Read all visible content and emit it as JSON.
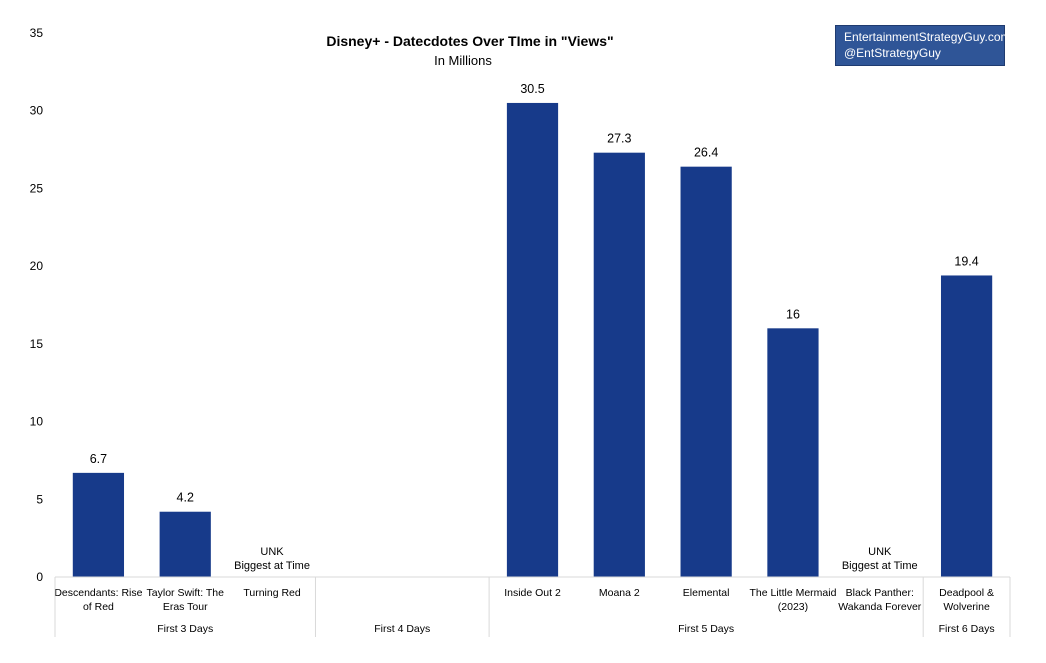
{
  "chart_data": {
    "type": "bar",
    "title": "Disney+ - Datecdotes Over TIme in \"Views\"",
    "subtitle": "In Millions",
    "ylim": [
      0,
      35
    ],
    "yticks": [
      0,
      5,
      10,
      15,
      20,
      25,
      30,
      35
    ],
    "bar_color": "#173a8a",
    "groups": [
      {
        "label": "First 3 Days",
        "slots": 3,
        "items": [
          {
            "slot": 0,
            "name": "Descendants: Rise of Red",
            "lines": [
              "Descendants: Rise",
              "of Red"
            ],
            "value": 6.7,
            "label": "6.7"
          },
          {
            "slot": 1,
            "name": "Taylor Swift: The Eras Tour",
            "lines": [
              "Taylor Swift: The",
              "Eras Tour"
            ],
            "value": 4.2,
            "label": "4.2"
          },
          {
            "slot": 2,
            "name": "Turning Red",
            "lines": [
              "Turning Red"
            ],
            "value": null,
            "note": [
              "UNK",
              "Biggest at Time"
            ]
          }
        ]
      },
      {
        "label": "First 4 Days",
        "slots": 2,
        "items": []
      },
      {
        "label": "First 5 Days",
        "slots": 5,
        "items": [
          {
            "slot": 0,
            "name": "Inside Out 2",
            "lines": [
              "Inside Out 2"
            ],
            "value": 30.5,
            "label": "30.5"
          },
          {
            "slot": 1,
            "name": "Moana 2",
            "lines": [
              "Moana 2"
            ],
            "value": 27.3,
            "label": "27.3"
          },
          {
            "slot": 2,
            "name": "Elemental",
            "lines": [
              "Elemental"
            ],
            "value": 26.4,
            "label": "26.4"
          },
          {
            "slot": 3,
            "name": "The Little Mermaid (2023)",
            "lines": [
              "The Little Mermaid",
              "(2023)"
            ],
            "value": 16,
            "label": "16"
          },
          {
            "slot": 4,
            "name": "Black Panther: Wakanda Forever",
            "lines": [
              "Black Panther:",
              "Wakanda Forever"
            ],
            "value": null,
            "note": [
              "UNK",
              "Biggest at Time"
            ]
          }
        ]
      },
      {
        "label": "First 6 Days",
        "slots": 1,
        "items": [
          {
            "slot": 0,
            "name": "Deadpool & Wolverine",
            "lines": [
              "Deadpool &",
              "Wolverine"
            ],
            "value": 19.4,
            "label": "19.4"
          }
        ]
      }
    ]
  },
  "credit": {
    "site": "EntertainmentStrategyGuy.com",
    "handle": "@EntStrategyGuy"
  }
}
